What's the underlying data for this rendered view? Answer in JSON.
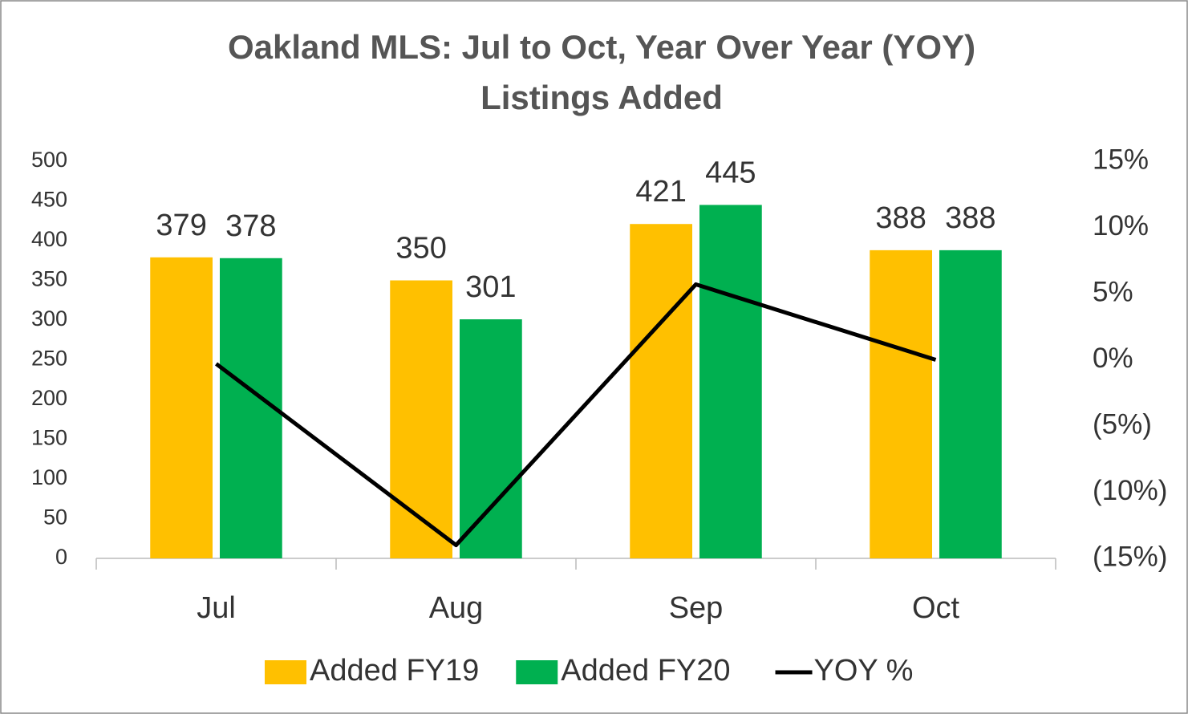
{
  "chart_data": {
    "type": "bar_line",
    "title": "Oakland MLS: Jul to Oct, Year Over Year (YOY)",
    "subtitle": "Listings Added",
    "categories": [
      "Jul",
      "Aug",
      "Sep",
      "Oct"
    ],
    "series": [
      {
        "name": "Added FY19",
        "color": "#FFC000",
        "type": "bar",
        "values": [
          379,
          350,
          421,
          388
        ]
      },
      {
        "name": "Added FY20",
        "color": "#00B050",
        "type": "bar",
        "values": [
          378,
          301,
          445,
          388
        ]
      },
      {
        "name": "YOY %",
        "color": "#000000",
        "type": "line",
        "axis": "y2",
        "values": [
          -0.3,
          -14,
          5.7,
          0
        ]
      }
    ],
    "ylim": [
      0,
      500
    ],
    "yticks": [
      0,
      50,
      100,
      150,
      200,
      250,
      300,
      350,
      400,
      450,
      500
    ],
    "y2lim": [
      -15,
      15
    ],
    "y2ticks": [
      {
        "value": -15,
        "label": "(15%)"
      },
      {
        "value": -10,
        "label": "(10%)"
      },
      {
        "value": -5,
        "label": "(5%)"
      },
      {
        "value": 0,
        "label": "0%"
      },
      {
        "value": 5,
        "label": "5%"
      },
      {
        "value": 10,
        "label": "10%"
      },
      {
        "value": 15,
        "label": "15%"
      }
    ],
    "negative_tick_color": "#FF0000",
    "legend": "bottom",
    "grid": false
  }
}
